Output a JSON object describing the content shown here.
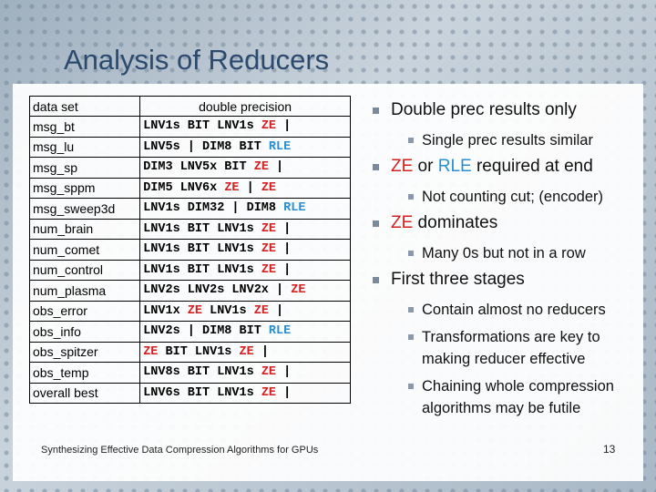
{
  "title": "Analysis of Reducers",
  "table": {
    "header": [
      "data set",
      "double precision"
    ],
    "rows": [
      [
        "msg_bt",
        [
          {
            "text": "LNV1s BIT LNV1s "
          },
          {
            "text": "ZE",
            "color": "#d42020"
          },
          {
            "text": " |"
          }
        ]
      ],
      [
        "msg_lu",
        [
          {
            "text": "LNV5s | DIM8 BIT "
          },
          {
            "text": "RLE",
            "color": "#2a8fd0"
          }
        ]
      ],
      [
        "msg_sp",
        [
          {
            "text": "DIM3 LNV5x BIT "
          },
          {
            "text": "ZE",
            "color": "#d42020"
          },
          {
            "text": " |"
          }
        ]
      ],
      [
        "msg_sppm",
        [
          {
            "text": "DIM5 LNV6x "
          },
          {
            "text": "ZE",
            "color": "#d42020"
          },
          {
            "text": " | "
          },
          {
            "text": "ZE",
            "color": "#d42020"
          }
        ]
      ],
      [
        "msg_sweep3d",
        [
          {
            "text": "LNV1s DIM32 | DIM8 "
          },
          {
            "text": "RLE",
            "color": "#2a8fd0"
          }
        ]
      ],
      [
        "num_brain",
        [
          {
            "text": "LNV1s BIT LNV1s "
          },
          {
            "text": "ZE",
            "color": "#d42020"
          },
          {
            "text": " |"
          }
        ]
      ],
      [
        "num_comet",
        [
          {
            "text": "LNV1s BIT LNV1s "
          },
          {
            "text": "ZE",
            "color": "#d42020"
          },
          {
            "text": " |"
          }
        ]
      ],
      [
        "num_control",
        [
          {
            "text": "LNV1s BIT LNV1s "
          },
          {
            "text": "ZE",
            "color": "#d42020"
          },
          {
            "text": " |"
          }
        ]
      ],
      [
        "num_plasma",
        [
          {
            "text": "LNV2s LNV2s LNV2x | "
          },
          {
            "text": "ZE",
            "color": "#d42020"
          }
        ]
      ],
      [
        "obs_error",
        [
          {
            "text": "LNV1x "
          },
          {
            "text": "ZE",
            "color": "#d42020"
          },
          {
            "text": " LNV1s "
          },
          {
            "text": "ZE",
            "color": "#d42020"
          },
          {
            "text": " |"
          }
        ]
      ],
      [
        "obs_info",
        [
          {
            "text": "LNV2s | DIM8 BIT "
          },
          {
            "text": "RLE",
            "color": "#2a8fd0"
          }
        ]
      ],
      [
        "obs_spitzer",
        [
          {
            "text": "ZE",
            "color": "#d42020"
          },
          {
            "text": " BIT LNV1s "
          },
          {
            "text": "ZE",
            "color": "#d42020"
          },
          {
            "text": " |"
          }
        ]
      ],
      [
        "obs_temp",
        [
          {
            "text": "LNV8s BIT LNV1s "
          },
          {
            "text": "ZE",
            "color": "#d42020"
          },
          {
            "text": " |"
          }
        ]
      ],
      [
        "overall best",
        [
          {
            "text": "LNV6s BIT LNV1s "
          },
          {
            "text": "ZE",
            "color": "#d42020"
          },
          {
            "text": " |"
          }
        ]
      ]
    ]
  },
  "bullets": [
    {
      "runs": [
        {
          "text": "Double prec results only"
        }
      ],
      "sub": [
        "Single prec results similar"
      ]
    },
    {
      "runs": [
        {
          "text": "ZE",
          "color": "#d42020"
        },
        {
          "text": " or "
        },
        {
          "text": "RLE",
          "color": "#2a8fd0"
        },
        {
          "text": " required at end"
        }
      ],
      "sub": [
        "Not counting cut; (encoder)"
      ]
    },
    {
      "runs": [
        {
          "text": "ZE",
          "color": "#d42020"
        },
        {
          "text": " dominates"
        }
      ],
      "sub": [
        "Many 0s but not in a row"
      ]
    },
    {
      "runs": [
        {
          "text": "First three stages"
        }
      ],
      "sub": [
        "Contain almost no reducers",
        "Transformations are key to making reducer effective",
        "Chaining whole compression algorithms may be futile"
      ]
    }
  ],
  "footer": "Synthesizing Effective Data Compression Algorithms for GPUs",
  "page_number": "13"
}
